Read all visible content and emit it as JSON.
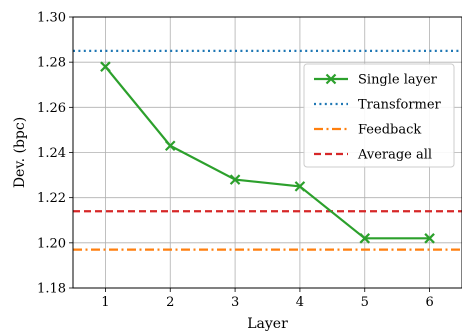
{
  "chart_data": {
    "type": "line",
    "title": "",
    "xlabel": "Layer",
    "ylabel": "Dev. (bpc)",
    "xlim": [
      0.5,
      6.5
    ],
    "ylim": [
      1.18,
      1.3
    ],
    "x_ticks": [
      "1",
      "2",
      "3",
      "4",
      "5",
      "6"
    ],
    "y_ticks": [
      "1.18",
      "1.20",
      "1.22",
      "1.24",
      "1.26",
      "1.28",
      "1.30"
    ],
    "grid": true,
    "legend_position": "right",
    "series": [
      {
        "name": "Single layer",
        "x": [
          1,
          2,
          3,
          4,
          5,
          6
        ],
        "y": [
          1.278,
          1.243,
          1.228,
          1.225,
          1.202,
          1.202
        ],
        "color": "#2ca02c",
        "style": "solid",
        "marker": "x"
      },
      {
        "name": "Transformer",
        "y_constant": 1.285,
        "color": "#1f77b4",
        "style": "dotted"
      },
      {
        "name": "Feedback",
        "y_constant": 1.197,
        "color": "#ff7f0e",
        "style": "dashdot"
      },
      {
        "name": "Average all",
        "y_constant": 1.214,
        "color": "#d62728",
        "style": "dashed"
      }
    ]
  }
}
